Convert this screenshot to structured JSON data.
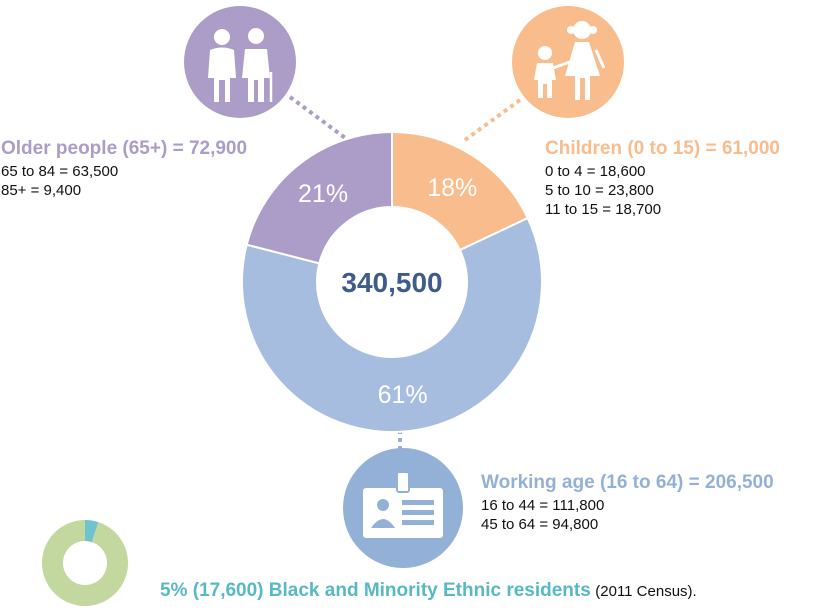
{
  "chart_data": {
    "type": "donut",
    "total": "340,500",
    "series": [
      {
        "name": "Older people (65+) = 72,900",
        "percent_label": "21%",
        "value": 21,
        "color": "#ab9cc8"
      },
      {
        "name": "Children (0 to 15) = 61,000",
        "percent_label": "18%",
        "value": 18,
        "color": "#f9bc8d"
      },
      {
        "name": "Working age (16 to 64) = 206,500",
        "percent_label": "61%",
        "value": 61,
        "color": "#a6bddf"
      }
    ],
    "breakdowns": {
      "older": [
        "65 to 84 = 63,500",
        "85+ = 9,400"
      ],
      "children": [
        "0 to 4 = 18,600",
        "5 to 10 = 23,800",
        "11 to 15 = 18,700"
      ],
      "working": [
        "16 to 44 = 111,800",
        "45 to 64 = 94,800"
      ]
    },
    "bme": {
      "label": "5% (17,600) Black and Minority Ethnic residents",
      "note": "(2011 Census).",
      "value": 5,
      "color": "#6fc3cd",
      "rest_color": "#c3d89e"
    }
  },
  "icons": {
    "older": "older-couple-icon",
    "children": "children-family-icon",
    "working": "id-badge-icon"
  },
  "colors": {
    "older": "#ab9cc8",
    "children": "#f9bc8d",
    "working": "#a6bddf",
    "center_text": "#3e5c8a"
  }
}
